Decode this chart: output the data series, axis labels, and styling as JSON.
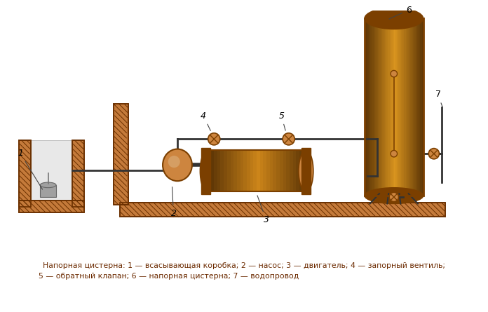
{
  "bg_color": "#ffffff",
  "copper_dark": "#7B3F00",
  "copper_mid": "#CD853F",
  "copper_light": "#DEB887",
  "line_color": "#333333",
  "caption_line1": "Напорная цистерна: 1 — всасывающая коробка; 2 — насос; 3 — двигатель; 4 — запорный вентиль;",
  "caption_line2": "5 — обратный клапан; 6 — напорная цистерна; 7 — водопровод",
  "wood_fill": "#C47A3A",
  "wood_edge": "#6B3000",
  "well_fill": "#E8E8E8",
  "float_fill": "#B0B0B0",
  "label_color": "#6B2A00"
}
